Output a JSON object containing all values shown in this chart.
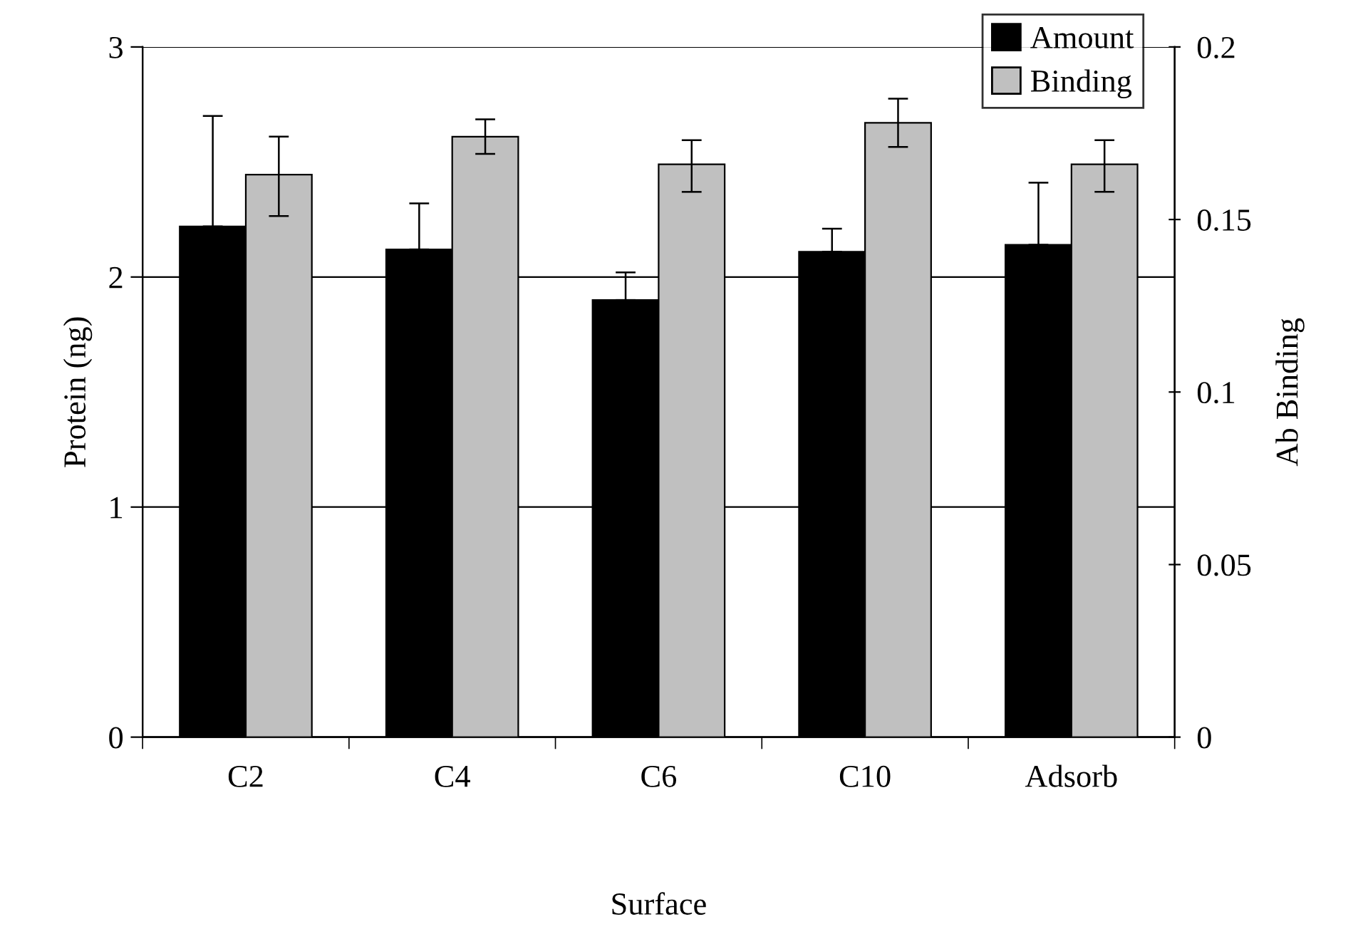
{
  "chart_data": {
    "type": "bar",
    "xlabel": "Surface",
    "ylabel": "Protein (ng)",
    "y2label": "Ab Binding",
    "categories": [
      "C2",
      "C4",
      "C6",
      "C10",
      "Adsorb"
    ],
    "series": [
      {
        "name": "Amount",
        "color": "#000000",
        "values": [
          2.22,
          2.12,
          1.9,
          2.11,
          2.14
        ],
        "errors": [
          [
            2.22,
            2.7
          ],
          [
            2.12,
            2.32
          ],
          [
            1.9,
            2.02
          ],
          [
            2.11,
            2.21
          ],
          [
            2.14,
            2.41
          ]
        ]
      },
      {
        "name": "Binding",
        "color": "#c0c0c0",
        "axis": "y2",
        "values": [
          0.163,
          0.174,
          0.166,
          0.178,
          0.166
        ],
        "errors": [
          [
            0.151,
            0.174
          ],
          [
            0.169,
            0.179
          ],
          [
            0.158,
            0.173
          ],
          [
            0.171,
            0.185
          ],
          [
            0.158,
            0.173
          ]
        ]
      }
    ],
    "ylim": [
      0,
      3
    ],
    "yticks": [
      0,
      1,
      2,
      3
    ],
    "y2lim": [
      0,
      0.2
    ],
    "y2ticks": [
      0,
      0.05,
      0.1,
      0.15,
      0.2
    ],
    "grid": "y",
    "legend": "top right"
  }
}
